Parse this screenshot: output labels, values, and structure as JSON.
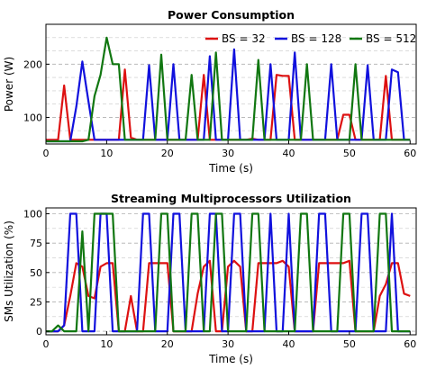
{
  "chart_data": [
    {
      "type": "line",
      "title": "Power Consumption",
      "xlabel": "Time (s)",
      "ylabel": "Power (W)",
      "xlim": [
        0,
        61
      ],
      "ylim": [
        50,
        275
      ],
      "xticks": [
        0,
        10,
        20,
        30,
        40,
        50,
        60
      ],
      "yticks": [
        100,
        200
      ],
      "grid": "horizontal dashed",
      "legend": "top-right",
      "series": [
        {
          "name": "BS = 32",
          "color": "#dd1111",
          "x": [
            0,
            1,
            2,
            3,
            4,
            5,
            6,
            7,
            8,
            9,
            10,
            11,
            12,
            13,
            14,
            15,
            16,
            17,
            18,
            19,
            20,
            21,
            22,
            23,
            24,
            25,
            26,
            27,
            28,
            29,
            30,
            31,
            32,
            33,
            34,
            35,
            36,
            37,
            38,
            39,
            40,
            41,
            42,
            43,
            44,
            45,
            46,
            47,
            48,
            49,
            50,
            51,
            52,
            53,
            54,
            55,
            56,
            57,
            58,
            59,
            60
          ],
          "values": [
            58,
            58,
            58,
            160,
            58,
            58,
            58,
            58,
            58,
            58,
            58,
            58,
            58,
            190,
            62,
            58,
            58,
            58,
            58,
            58,
            58,
            58,
            58,
            58,
            58,
            58,
            180,
            58,
            58,
            58,
            58,
            58,
            58,
            58,
            60,
            58,
            58,
            58,
            180,
            178,
            178,
            58,
            58,
            58,
            58,
            58,
            58,
            58,
            58,
            105,
            105,
            58,
            58,
            58,
            58,
            58,
            178,
            58,
            58,
            58,
            58
          ]
        },
        {
          "name": "BS = 128",
          "color": "#1111dd",
          "x": [
            0,
            1,
            2,
            3,
            4,
            5,
            6,
            7,
            8,
            9,
            10,
            11,
            12,
            13,
            14,
            15,
            16,
            17,
            18,
            19,
            20,
            21,
            22,
            23,
            24,
            25,
            26,
            27,
            28,
            29,
            30,
            31,
            32,
            33,
            34,
            35,
            36,
            37,
            38,
            39,
            40,
            41,
            42,
            43,
            44,
            45,
            46,
            47,
            48,
            49,
            50,
            51,
            52,
            53,
            54,
            55,
            56,
            57,
            58,
            59,
            60
          ],
          "values": [
            55,
            55,
            55,
            55,
            55,
            120,
            205,
            130,
            58,
            58,
            58,
            58,
            58,
            58,
            58,
            58,
            58,
            198,
            58,
            58,
            58,
            200,
            58,
            58,
            58,
            58,
            58,
            215,
            58,
            58,
            58,
            228,
            58,
            58,
            58,
            58,
            58,
            200,
            58,
            58,
            58,
            222,
            58,
            58,
            58,
            58,
            58,
            200,
            58,
            58,
            58,
            58,
            58,
            198,
            58,
            58,
            58,
            190,
            185,
            58,
            58
          ]
        },
        {
          "name": "BS = 512",
          "color": "#117711",
          "x": [
            0,
            1,
            2,
            3,
            4,
            5,
            6,
            7,
            8,
            9,
            10,
            11,
            12,
            13,
            14,
            15,
            16,
            17,
            18,
            19,
            20,
            21,
            22,
            23,
            24,
            25,
            26,
            27,
            28,
            29,
            30,
            31,
            32,
            33,
            34,
            35,
            36,
            37,
            38,
            39,
            40,
            41,
            42,
            43,
            44,
            45,
            46,
            47,
            48,
            49,
            50,
            51,
            52,
            53,
            54,
            55,
            56,
            57,
            58,
            59,
            60
          ],
          "values": [
            55,
            55,
            55,
            55,
            55,
            55,
            55,
            58,
            140,
            180,
            250,
            200,
            200,
            58,
            58,
            58,
            58,
            58,
            58,
            218,
            58,
            58,
            58,
            58,
            180,
            58,
            58,
            58,
            222,
            58,
            58,
            58,
            58,
            58,
            58,
            208,
            58,
            58,
            58,
            58,
            58,
            58,
            58,
            200,
            58,
            58,
            58,
            58,
            58,
            58,
            58,
            200,
            58,
            58,
            58,
            58,
            58,
            58,
            58,
            58,
            58
          ]
        }
      ]
    },
    {
      "type": "line",
      "title": "Streaming Multiprocessors Utilization",
      "xlabel": "Time (s)",
      "ylabel": "SMs Utilization (%)",
      "xlim": [
        0,
        61
      ],
      "ylim": [
        -3,
        105
      ],
      "xticks": [
        0,
        10,
        20,
        30,
        40,
        50,
        60
      ],
      "yticks": [
        0,
        25,
        50,
        75,
        100
      ],
      "grid": "horizontal dashed",
      "legend": "none",
      "series": [
        {
          "name": "BS = 32",
          "color": "#dd1111",
          "x": [
            0,
            1,
            2,
            3,
            4,
            5,
            6,
            7,
            8,
            9,
            10,
            11,
            12,
            13,
            14,
            15,
            16,
            17,
            18,
            19,
            20,
            21,
            22,
            23,
            24,
            25,
            26,
            27,
            28,
            29,
            30,
            31,
            32,
            33,
            34,
            35,
            36,
            37,
            38,
            39,
            40,
            41,
            42,
            43,
            44,
            45,
            46,
            47,
            48,
            49,
            50,
            51,
            52,
            53,
            54,
            55,
            56,
            57,
            58,
            59,
            60
          ],
          "values": [
            0,
            0,
            0,
            5,
            30,
            58,
            55,
            30,
            28,
            55,
            58,
            58,
            0,
            0,
            30,
            0,
            0,
            58,
            58,
            58,
            58,
            0,
            0,
            0,
            0,
            32,
            55,
            60,
            0,
            0,
            55,
            60,
            55,
            0,
            0,
            58,
            58,
            58,
            58,
            60,
            55,
            0,
            0,
            0,
            0,
            58,
            58,
            58,
            58,
            58,
            60,
            0,
            0,
            0,
            0,
            30,
            40,
            58,
            58,
            32,
            30
          ]
        },
        {
          "name": "BS = 128",
          "color": "#1111dd",
          "x": [
            0,
            1,
            2,
            3,
            4,
            5,
            6,
            7,
            8,
            9,
            10,
            11,
            12,
            13,
            14,
            15,
            16,
            17,
            18,
            19,
            20,
            21,
            22,
            23,
            24,
            25,
            26,
            27,
            28,
            29,
            30,
            31,
            32,
            33,
            34,
            35,
            36,
            37,
            38,
            39,
            40,
            41,
            42,
            43,
            44,
            45,
            46,
            47,
            48,
            49,
            50,
            51,
            52,
            53,
            54,
            55,
            56,
            57,
            58,
            59,
            60
          ],
          "values": [
            0,
            0,
            0,
            5,
            100,
            100,
            0,
            0,
            0,
            100,
            100,
            0,
            0,
            0,
            0,
            0,
            100,
            100,
            0,
            0,
            0,
            100,
            100,
            0,
            0,
            0,
            0,
            100,
            100,
            0,
            0,
            100,
            100,
            0,
            0,
            0,
            0,
            100,
            0,
            0,
            100,
            0,
            0,
            0,
            0,
            100,
            100,
            0,
            0,
            0,
            0,
            0,
            100,
            100,
            0,
            0,
            0,
            100,
            0,
            0,
            0
          ]
        },
        {
          "name": "BS = 512",
          "color": "#117711",
          "x": [
            0,
            1,
            2,
            3,
            4,
            5,
            6,
            7,
            8,
            9,
            10,
            11,
            12,
            13,
            14,
            15,
            16,
            17,
            18,
            19,
            20,
            21,
            22,
            23,
            24,
            25,
            26,
            27,
            28,
            29,
            30,
            31,
            32,
            33,
            34,
            35,
            36,
            37,
            38,
            39,
            40,
            41,
            42,
            43,
            44,
            45,
            46,
            47,
            48,
            49,
            50,
            51,
            52,
            53,
            54,
            55,
            56,
            57,
            58,
            59,
            60
          ],
          "values": [
            0,
            0,
            5,
            0,
            0,
            0,
            85,
            0,
            100,
            100,
            100,
            100,
            0,
            0,
            0,
            0,
            0,
            0,
            0,
            100,
            100,
            0,
            0,
            0,
            100,
            100,
            0,
            0,
            100,
            100,
            0,
            0,
            0,
            0,
            100,
            100,
            0,
            0,
            0,
            0,
            0,
            0,
            100,
            100,
            0,
            0,
            0,
            0,
            0,
            100,
            100,
            0,
            0,
            0,
            0,
            100,
            100,
            0,
            0,
            0,
            0
          ]
        }
      ]
    }
  ]
}
